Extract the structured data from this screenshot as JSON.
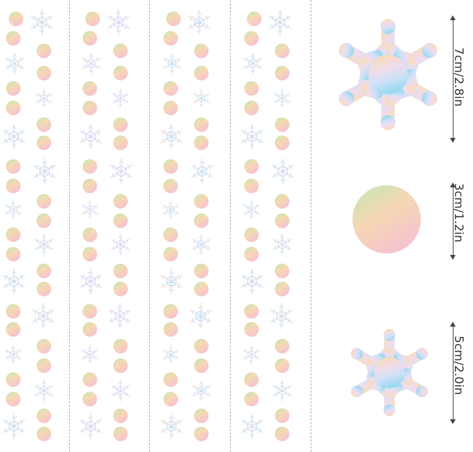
{
  "sizes": [
    {
      "label": "7cm/2.8in",
      "shape": "snowflake",
      "icon": "snowflake-icon"
    },
    {
      "label": "3cm/1.2in",
      "shape": "dot",
      "icon": "circle-icon"
    },
    {
      "label": "5cm/2.0in",
      "shape": "snowflake",
      "icon": "snowflake-icon"
    }
  ],
  "strip_count": 4,
  "colors": {
    "iridescent": [
      "#f7d9ae",
      "#f4c9d8",
      "#cfe3f7",
      "#bfe6c8",
      "#9fdcf0"
    ],
    "dot_gradient": [
      "#bfeab0",
      "#f6d7b4",
      "#f5c3cf"
    ],
    "snow_gradient": [
      "#f8dcb0",
      "#e9dcf4",
      "#bcdcf6",
      "#8ed8ef"
    ],
    "divider": "#a9a9a9",
    "dimension_line": "#444444"
  }
}
